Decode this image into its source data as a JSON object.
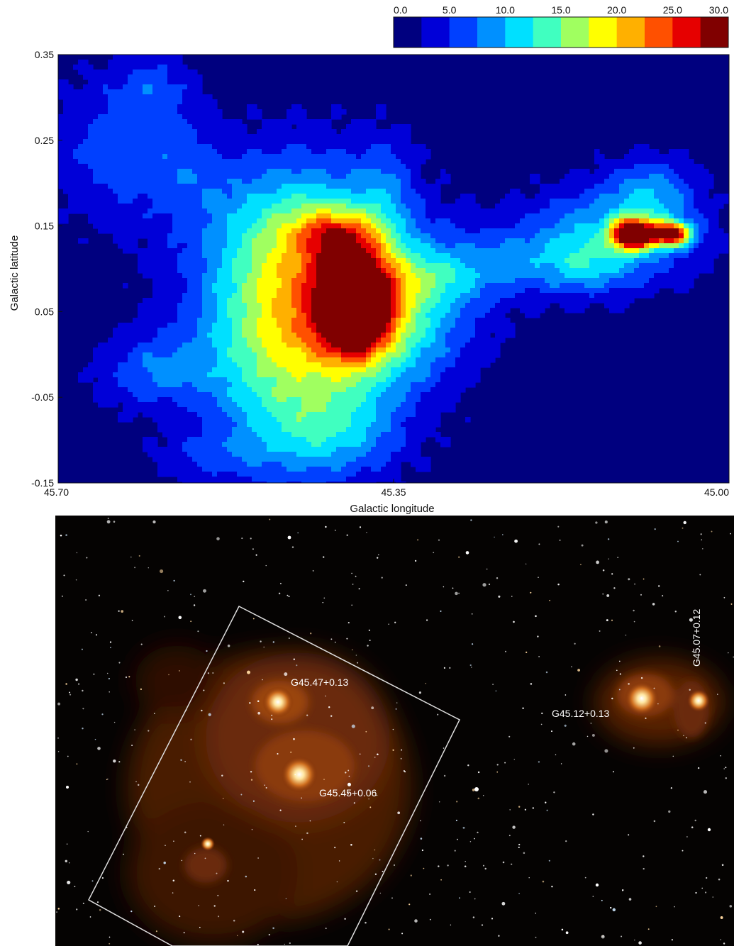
{
  "chart_data": [
    {
      "type": "heatmap",
      "title": "",
      "xlabel": "Galactic longitude",
      "ylabel": "Galactic latitude",
      "xlim": [
        45.7,
        45.0
      ],
      "ylim": [
        -0.15,
        0.35
      ],
      "x_ticks": [
        "45.70",
        "45.35",
        "45.00"
      ],
      "x_tick_values": [
        45.7,
        45.35,
        45.0
      ],
      "y_ticks": [
        "0.35",
        "0.25",
        "0.15",
        "0.05",
        "-0.05",
        "-0.15"
      ],
      "y_tick_values": [
        0.35,
        0.25,
        0.15,
        0.05,
        -0.05,
        -0.15
      ],
      "colorbar": {
        "ticks": [
          "0.0",
          "5.0",
          "10.0",
          "15.0",
          "20.0",
          "25.0",
          "30.0"
        ],
        "tick_values": [
          0,
          5,
          10,
          15,
          20,
          25,
          30
        ],
        "range": [
          0,
          30
        ],
        "colors": [
          "#00007f",
          "#0000d8",
          "#0040ff",
          "#0090ff",
          "#00e0ff",
          "#40ffc0",
          "#a0ff60",
          "#ffff00",
          "#ffb000",
          "#ff5000",
          "#e60000",
          "#800000"
        ]
      },
      "background_value": 1.0,
      "emission_clumps": [
        {
          "l": 45.64,
          "b": 0.24,
          "sl": 0.05,
          "sb": 0.06,
          "value": 5
        },
        {
          "l": 45.6,
          "b": 0.31,
          "sl": 0.03,
          "sb": 0.03,
          "value": 4
        },
        {
          "l": 45.57,
          "b": 0.21,
          "sl": 0.03,
          "sb": 0.04,
          "value": 3
        },
        {
          "l": 45.45,
          "b": 0.13,
          "sl": 0.07,
          "sb": 0.07,
          "value": 14
        },
        {
          "l": 45.41,
          "b": 0.14,
          "sl": 0.03,
          "sb": 0.02,
          "value": 10
        },
        {
          "l": 45.36,
          "b": 0.2,
          "sl": 0.02,
          "sb": 0.04,
          "value": 4
        },
        {
          "l": 45.39,
          "b": 0.06,
          "sl": 0.025,
          "sb": 0.04,
          "value": 26
        },
        {
          "l": 45.36,
          "b": 0.05,
          "sl": 0.06,
          "sb": 0.06,
          "value": 12
        },
        {
          "l": 45.45,
          "b": 0.02,
          "sl": 0.07,
          "sb": 0.06,
          "value": 9
        },
        {
          "l": 45.48,
          "b": -0.05,
          "sl": 0.05,
          "sb": 0.08,
          "value": 6
        },
        {
          "l": 45.6,
          "b": -0.02,
          "sl": 0.04,
          "sb": 0.03,
          "value": 6
        },
        {
          "l": 45.41,
          "b": -0.09,
          "sl": 0.05,
          "sb": 0.04,
          "value": 8
        },
        {
          "l": 45.55,
          "b": -0.12,
          "sl": 0.04,
          "sb": 0.02,
          "value": 3
        },
        {
          "l": 45.3,
          "b": 0.09,
          "sl": 0.04,
          "sb": 0.02,
          "value": 4
        },
        {
          "l": 45.22,
          "b": 0.11,
          "sl": 0.06,
          "sb": 0.03,
          "value": 5
        },
        {
          "l": 45.12,
          "b": 0.14,
          "sl": 0.06,
          "sb": 0.04,
          "value": 9
        },
        {
          "l": 45.1,
          "b": 0.14,
          "sl": 0.015,
          "sb": 0.012,
          "value": 29
        },
        {
          "l": 45.06,
          "b": 0.14,
          "sl": 0.015,
          "sb": 0.01,
          "value": 23
        },
        {
          "l": 45.08,
          "b": 0.19,
          "sl": 0.03,
          "sb": 0.03,
          "value": 6
        },
        {
          "l": 45.15,
          "b": 0.1,
          "sl": 0.03,
          "sb": 0.02,
          "value": 4
        }
      ]
    },
    {
      "type": "image",
      "description_visible": "Infrared image of the field",
      "annotations": [
        {
          "text": "G45.47+0.13",
          "rotation": 0
        },
        {
          "text": "G45.45+0.06",
          "rotation": 0
        },
        {
          "text": "G45.12+0.13",
          "rotation": 0
        },
        {
          "text": "G45.07+0.12",
          "rotation": -90
        }
      ],
      "colors": {
        "background": "#050302",
        "nebula": "#6a2a08",
        "core": "#fff2c0",
        "box": "#dddddd"
      }
    }
  ]
}
